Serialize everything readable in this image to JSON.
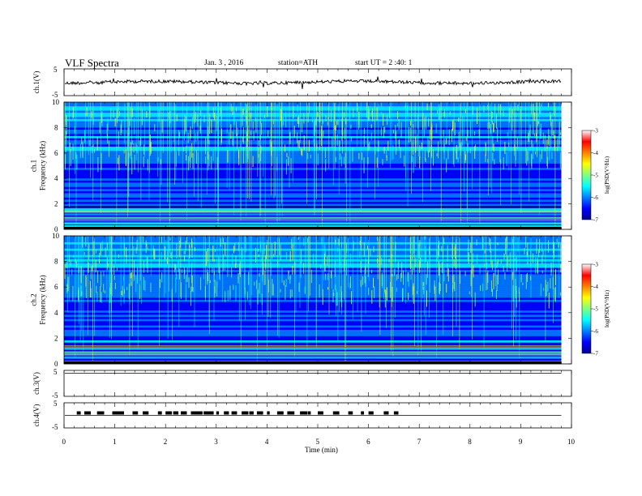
{
  "header": {
    "title": "VLF Spectra",
    "date": "Jan. 3 , 2016",
    "station": "station=ATH",
    "start": "start UT = 2 :40: 1"
  },
  "colors": {
    "spectrogram_scale": [
      "#000090",
      "#0000ff",
      "#0080ff",
      "#00ffff",
      "#80ff80",
      "#ffff00",
      "#ff8000",
      "#ff0000",
      "#ffffff"
    ],
    "waveform": "#000000"
  },
  "chart_data": [
    {
      "type": "line",
      "panel": "ch1-waveform",
      "ylabel": "ch.1(V)",
      "ylim": [
        -5,
        5
      ],
      "yticks": [
        "5",
        "-5"
      ],
      "xlim": [
        0,
        10
      ],
      "series": [
        {
          "x": [
            0,
            9.8
          ],
          "approx_level": 0,
          "description": "noisy baseline trace"
        }
      ]
    },
    {
      "type": "heatmap",
      "panel": "ch1-spectrogram",
      "ylabel": "ch.1\nFrequency (kHz)",
      "ylabel_lines": [
        "ch.1",
        "Frequency (kHz)"
      ],
      "ylim": [
        0,
        10
      ],
      "yticks": [
        "0",
        "2",
        "4",
        "6",
        "8",
        "10"
      ],
      "xlim": [
        0,
        10
      ],
      "colorbar": {
        "label": "log(PSD(V²/Hz)",
        "ticks": [
          "-3",
          "-4",
          "-5",
          "-6",
          "-7"
        ],
        "range": [
          -7,
          -3
        ]
      }
    },
    {
      "type": "heatmap",
      "panel": "ch2-spectrogram",
      "ylabel_lines": [
        "ch.2",
        "Frequency (kHz)"
      ],
      "ylim": [
        0,
        10
      ],
      "yticks": [
        "0",
        "2",
        "4",
        "6",
        "8",
        "10"
      ],
      "xlim": [
        0,
        10
      ],
      "colorbar": {
        "label": "log(PSD(V²/Hz)",
        "ticks": [
          "-3",
          "-4",
          "-5",
          "-6",
          "-7"
        ],
        "range": [
          -7,
          -3
        ]
      }
    },
    {
      "type": "line",
      "panel": "ch3-waveform",
      "ylabel": "ch.3(V)",
      "ylim": [
        -5,
        5
      ],
      "yticks": [
        "5",
        "-5"
      ],
      "series": [
        {
          "x": [
            0,
            9.8
          ],
          "approx_level": 4.5
        }
      ]
    },
    {
      "type": "line",
      "panel": "ch4-waveform",
      "ylabel": "ch.4(V)",
      "ylim": [
        -5,
        5
      ],
      "yticks": [
        "5",
        "-5"
      ],
      "series": [
        {
          "x": [
            0,
            9.8
          ],
          "approx_level": 0,
          "pulses_x": [
            0.25,
            0.4,
            0.65,
            0.7,
            0.95,
            1.05,
            1.35,
            1.55,
            1.85,
            2.0,
            2.15,
            2.3,
            2.5,
            2.6,
            2.75,
            2.85,
            3.0,
            3.15,
            3.3,
            3.5,
            3.65,
            3.8,
            4.0,
            4.2,
            4.4,
            4.65,
            4.8,
            5.0,
            5.3,
            5.6,
            5.85,
            6.0,
            6.3,
            6.5
          ]
        }
      ]
    }
  ],
  "x_axis": {
    "label": "Time (min)",
    "ticks": [
      "0",
      "1",
      "2",
      "3",
      "4",
      "5",
      "6",
      "7",
      "8",
      "9",
      "10"
    ]
  }
}
